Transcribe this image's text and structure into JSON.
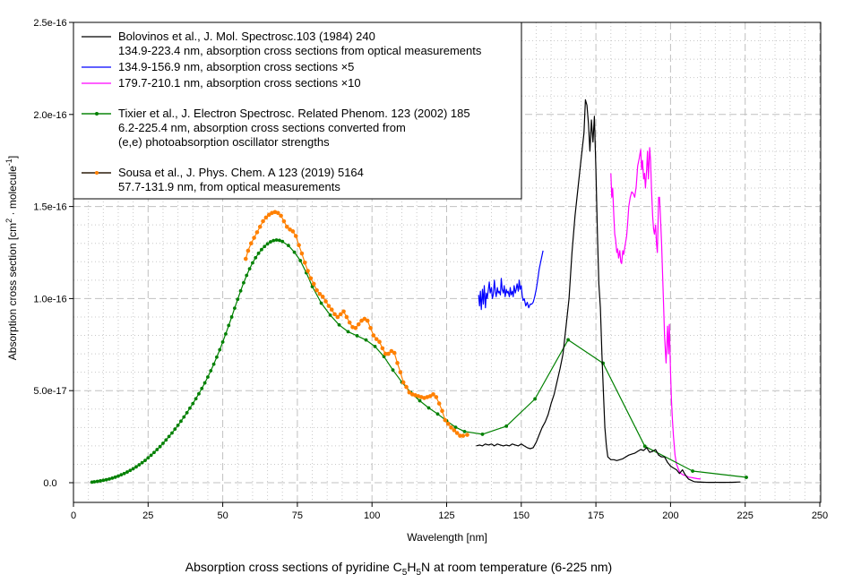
{
  "chart_data": {
    "type": "line",
    "caption": {
      "pre": "Absorption cross sections of pyridine C",
      "sub1": "5",
      "mid1": "H",
      "sub2": "5",
      "post": "N at room temperature (6-225 nm)"
    },
    "xlabel": "Wavelength [nm]",
    "ylabel": {
      "pre": "Absorption cross section [cm",
      "sup1": "2",
      "mid": " · molecule",
      "sup2": "-1",
      "post": "]"
    },
    "xlim": [
      0,
      250
    ],
    "ylim": [
      0,
      2.5e-16
    ],
    "x_ticks": [
      0,
      25,
      50,
      75,
      100,
      125,
      150,
      175,
      200,
      225,
      250
    ],
    "x_tick_labels": [
      "0",
      "25",
      "50",
      "75",
      "100",
      "125",
      "150",
      "175",
      "200",
      "225",
      "250"
    ],
    "y_ticks": [
      0,
      5e-17,
      1e-16,
      1.5e-16,
      2e-16,
      2.5e-16
    ],
    "y_tick_labels": [
      "0.0",
      "5.0e-17",
      "1.0e-16",
      "1.5e-16",
      "2.0e-16",
      "2.5e-16"
    ],
    "grid": true,
    "legend_position": "top-left",
    "legend": [
      {
        "series": "bolovinos",
        "lines": [
          "Bolovinos et al., J. Mol. Spectrosc.103 (1984) 240",
          "134.9-223.4 nm, absorption cross sections from optical measurements"
        ]
      },
      {
        "series": "bolovinos_x5",
        "lines": [
          "134.9-156.9 nm, absorption cross sections ×5"
        ]
      },
      {
        "series": "bolovinos_x10",
        "lines": [
          "179.7-210.1 nm, absorption cross sections ×10"
        ]
      },
      {
        "series": "tixier",
        "lines": [
          "Tixier et al., J. Electron Spectrosc. Related Phenom. 123 (2002) 185",
          "6.2-225.4 nm, absorption cross sections converted from",
          "(e,e) photoabsorption oscillator strengths"
        ]
      },
      {
        "series": "sousa",
        "lines": [
          "Sousa et al., J. Phys. Chem. A 123 (2019) 5164",
          "57.7-131.9 nm, from optical measurements"
        ]
      }
    ],
    "series": [
      {
        "id": "tixier",
        "name": "Tixier et al. (2002)",
        "color": "#008000",
        "markers": true,
        "x": [
          6.2,
          7,
          8,
          9,
          10,
          11,
          12,
          13,
          14,
          15,
          16,
          17,
          18,
          19,
          20,
          21,
          22,
          23,
          24,
          25,
          26,
          27,
          28,
          29,
          30,
          31,
          32,
          33,
          34,
          35,
          36,
          37,
          38,
          39,
          40,
          41,
          42,
          43,
          44,
          45,
          46,
          47,
          48,
          49,
          50,
          51,
          52,
          53,
          54,
          55,
          56,
          57,
          58,
          59,
          60,
          61,
          62,
          63,
          64,
          65,
          66,
          67,
          68,
          69,
          70,
          72,
          74,
          76,
          78,
          80,
          83,
          86,
          89,
          92,
          95,
          98,
          101,
          104,
          107,
          110,
          113,
          116,
          119,
          122,
          125,
          128,
          131,
          137,
          145,
          154.6,
          165.7,
          177.4,
          191.4,
          207.4,
          225.4
        ],
        "y": [
          3e-19,
          5e-19,
          7e-19,
          1e-18,
          1.3e-18,
          1.6e-18,
          2e-18,
          2.5e-18,
          3e-18,
          3.6e-18,
          4.3e-18,
          5e-18,
          5.8e-18,
          6.7e-18,
          7.6e-18,
          8.6e-18,
          9.7e-18,
          1.09e-17,
          1.21e-17,
          1.35e-17,
          1.49e-17,
          1.64e-17,
          1.8e-17,
          1.96e-17,
          2.14e-17,
          2.32e-17,
          2.51e-17,
          2.7e-17,
          2.91e-17,
          3.12e-17,
          3.34e-17,
          3.57e-17,
          3.8e-17,
          4.05e-17,
          4.3e-17,
          4.56e-17,
          4.83e-17,
          5.12e-17,
          5.42e-17,
          5.74e-17,
          6.08e-17,
          6.44e-17,
          6.82e-17,
          7.22e-17,
          7.64e-17,
          8.08e-17,
          8.54e-17,
          9e-17,
          9.48e-17,
          9.96e-17,
          1.042e-16,
          1.086e-16,
          1.126e-16,
          1.162e-16,
          1.194e-16,
          1.222e-16,
          1.246e-16,
          1.266e-16,
          1.283e-16,
          1.297e-16,
          1.308e-16,
          1.315e-16,
          1.318e-16,
          1.316e-16,
          1.31e-16,
          1.288e-16,
          1.252e-16,
          1.206e-16,
          1.14e-16,
          1.065e-16,
          9.75e-17,
          9.1e-17,
          8.57e-17,
          8.2e-17,
          7.98e-17,
          7.75e-17,
          7.4e-17,
          6.85e-17,
          6.12e-17,
          5.46e-17,
          4.9e-17,
          4.45e-17,
          4.06e-17,
          3.73e-17,
          3.36e-17,
          3.01e-17,
          2.78e-17,
          2.63e-17,
          3.07e-17,
          4.55e-17,
          7.76e-17,
          6.49e-17,
          1.98e-17,
          6.3e-18,
          2.9e-18
        ]
      },
      {
        "id": "sousa",
        "name": "Sousa et al. (2019)",
        "color": "#ff8000",
        "markers": true,
        "x": [
          57.7,
          58.5,
          59.5,
          60.5,
          61.5,
          62.5,
          63.5,
          64.5,
          65.5,
          66.5,
          67.5,
          68.5,
          69.5,
          70.5,
          71.5,
          72.5,
          73.5,
          74.5,
          75.5,
          76.5,
          77.5,
          78.5,
          79.5,
          80.5,
          81.5,
          82.5,
          83.5,
          84.5,
          85.5,
          86.5,
          87.5,
          88.5,
          89.5,
          90.5,
          91.5,
          92.5,
          93.5,
          94.5,
          95.5,
          96.5,
          97.5,
          98.5,
          99.5,
          100.5,
          101.5,
          102.5,
          103.5,
          104.5,
          105.5,
          106.5,
          107.5,
          108.5,
          109.5,
          110.5,
          111.5,
          112.5,
          113.5,
          114.5,
          115.5,
          116.5,
          117.5,
          118.5,
          119.5,
          120.5,
          121.5,
          122.5,
          123.5,
          124.5,
          125.5,
          126.5,
          127.5,
          128.5,
          129.5,
          130.5,
          131.9
        ],
        "y": [
          1.216e-16,
          1.26e-16,
          1.3e-16,
          1.33e-16,
          1.36e-16,
          1.39e-16,
          1.42e-16,
          1.44e-16,
          1.455e-16,
          1.465e-16,
          1.47e-16,
          1.465e-16,
          1.45e-16,
          1.42e-16,
          1.39e-16,
          1.375e-16,
          1.365e-16,
          1.34e-16,
          1.29e-16,
          1.245e-16,
          1.195e-16,
          1.15e-16,
          1.11e-16,
          1.08e-16,
          1.045e-16,
          1.025e-16,
          1.01e-16,
          9.85e-17,
          9.6e-17,
          9.4e-17,
          9.15e-17,
          9e-17,
          9.15e-17,
          9.3e-17,
          9e-17,
          8.7e-17,
          8.45e-17,
          8.4e-17,
          8.6e-17,
          8.8e-17,
          8.9e-17,
          8.8e-17,
          8.4e-17,
          8e-17,
          7.8e-17,
          7.65e-17,
          7.3e-17,
          7e-17,
          7e-17,
          7.15e-17,
          7.05e-17,
          6.5e-17,
          6e-17,
          5.45e-17,
          5.2e-17,
          4.9e-17,
          4.8e-17,
          4.75e-17,
          4.7e-17,
          4.65e-17,
          4.6e-17,
          4.65e-17,
          4.7e-17,
          4.8e-17,
          4.65e-17,
          4.3e-17,
          3.9e-17,
          3.4e-17,
          3.2e-17,
          3e-17,
          2.85e-17,
          2.7e-17,
          2.55e-17,
          2.55e-17,
          2.6e-17
        ]
      },
      {
        "id": "bolovinos",
        "name": "Bolovinos et al. (1984)",
        "color": "#000000",
        "markers": false,
        "x": [
          134.9,
          136,
          137,
          138,
          139,
          140,
          141,
          142,
          143,
          144,
          145,
          146,
          147,
          148,
          149,
          150,
          151,
          152,
          153,
          154,
          155,
          156,
          157,
          158,
          159,
          160,
          161,
          162,
          163,
          164,
          165,
          166,
          167,
          168,
          169,
          170,
          171,
          171.5,
          172,
          172.5,
          173,
          173.5,
          174,
          174.5,
          175,
          175.5,
          176,
          176.5,
          177,
          177.5,
          178,
          178.5,
          179,
          180,
          181,
          182,
          183,
          184,
          185,
          186,
          187,
          188,
          189,
          190,
          191,
          192,
          193,
          194,
          195,
          196,
          197,
          198,
          199,
          200,
          201,
          202,
          203,
          204,
          205,
          206,
          208,
          212,
          216,
          220,
          223.4
        ],
        "y": [
          2e-17,
          2.05e-17,
          2e-17,
          2.1e-17,
          2.05e-17,
          2.1e-17,
          2e-17,
          2.1e-17,
          2.05e-17,
          2e-17,
          2.05e-17,
          2e-17,
          2.1e-17,
          2.05e-17,
          2e-17,
          2.1e-17,
          2e-17,
          1.9e-17,
          1.85e-17,
          1.9e-17,
          2.2e-17,
          2.6e-17,
          3e-17,
          3.3e-17,
          3.7e-17,
          4.3e-17,
          4.8e-17,
          5.5e-17,
          6.2e-17,
          7e-17,
          8.5e-17,
          1e-16,
          1.25e-16,
          1.45e-16,
          1.6e-16,
          1.75e-16,
          1.9e-16,
          2.08e-16,
          2.05e-16,
          1.95e-16,
          1.8e-16,
          1.97e-16,
          1.85e-16,
          1.99e-16,
          1.7e-16,
          1.35e-16,
          1.08e-16,
          9.5e-17,
          7e-17,
          5e-17,
          3e-17,
          2e-17,
          1.4e-17,
          1.25e-17,
          1.25e-17,
          1.2e-17,
          1.25e-17,
          1.3e-17,
          1.4e-17,
          1.5e-17,
          1.55e-17,
          1.6e-17,
          1.7e-17,
          1.8e-17,
          1.75e-17,
          1.9e-17,
          1.65e-17,
          1.7e-17,
          1.8e-17,
          1.5e-17,
          1.4e-17,
          1.4e-17,
          1.1e-17,
          9e-18,
          8e-18,
          7e-18,
          5e-18,
          7e-18,
          4e-18,
          2e-18,
          5e-19,
          2e-19,
          2e-19,
          2e-19,
          4e-19
        ]
      },
      {
        "id": "bolovinos_x5",
        "name": "Bolovinos ×5",
        "color": "#0000ff",
        "markers": false,
        "x": [
          135.7,
          136,
          136.3,
          136.6,
          137,
          137.3,
          137.6,
          138,
          138.3,
          138.6,
          139,
          139.3,
          139.6,
          140,
          140.3,
          140.6,
          141,
          141.3,
          141.6,
          142,
          142.3,
          142.6,
          143,
          143.3,
          143.6,
          144,
          144.3,
          144.6,
          145,
          145.3,
          145.6,
          146,
          146.3,
          146.6,
          147,
          147.3,
          147.6,
          148,
          148.3,
          148.6,
          149,
          149.3,
          149.6,
          150,
          150.3,
          150.6,
          151,
          151.5,
          152,
          152.5,
          153,
          153.5,
          154,
          154.5,
          155,
          155.5,
          156,
          156.5,
          157.3
        ],
        "y": [
          1.02e-16,
          9.6e-17,
          1.04e-16,
          9.4e-17,
          1.05e-16,
          9.7e-17,
          1.07e-16,
          9.5e-17,
          1.03e-16,
          1e-16,
          1.05e-16,
          1.09e-16,
          1.03e-16,
          1.06e-16,
          1e-16,
          1.02e-16,
          1.1e-16,
          1.04e-16,
          1.01e-16,
          1.06e-16,
          1.03e-16,
          1.04e-16,
          1.02e-16,
          1.11e-16,
          1.05e-16,
          1.03e-16,
          1.07e-16,
          1.01e-16,
          1.05e-16,
          1.03e-16,
          1.04e-16,
          1.01e-16,
          1.06e-16,
          1.02e-16,
          1.04e-16,
          1.01e-16,
          1.07e-16,
          1.03e-16,
          1.05e-16,
          1.08e-16,
          1.04e-16,
          1.1e-16,
          1.05e-16,
          1.07e-16,
          1.02e-16,
          9.9e-17,
          1e-16,
          9.6e-17,
          9.8e-17,
          9.5e-17,
          9.7e-17,
          9.7e-17,
          9.8e-17,
          1.01e-16,
          1.05e-16,
          1.1e-16,
          1.16e-16,
          1.2e-16,
          1.26e-16
        ]
      },
      {
        "id": "bolovinos_x10",
        "name": "Bolovinos ×10",
        "color": "#ff00ff",
        "markers": false,
        "x": [
          180,
          180.3,
          180.6,
          181,
          181.3,
          181.6,
          182,
          182.3,
          182.6,
          183,
          183.3,
          183.6,
          184,
          184.3,
          184.6,
          185,
          185.3,
          185.6,
          186,
          186.5,
          187,
          187.5,
          188,
          188.5,
          189,
          189.5,
          190,
          190.3,
          190.6,
          191,
          191.3,
          191.6,
          192,
          192.3,
          192.6,
          193,
          193.3,
          193.6,
          194,
          194.3,
          194.6,
          195,
          195.3,
          195.6,
          196,
          196.3,
          196.6,
          197,
          197.3,
          197.6,
          198,
          198.5,
          199,
          199.3,
          199.6,
          200,
          200.3,
          200.6,
          201,
          201.5,
          202,
          202.5,
          203,
          203.5,
          204,
          204.5,
          205,
          205.5,
          206,
          207,
          208,
          209,
          210.1
        ],
        "y": [
          1.68e-16,
          1.55e-16,
          1.6e-16,
          1.45e-16,
          1.35e-16,
          1.32e-16,
          1.25e-16,
          1.27e-16,
          1.22e-16,
          1.26e-16,
          1.2e-16,
          1.19e-16,
          1.26e-16,
          1.24e-16,
          1.27e-16,
          1.31e-16,
          1.34e-16,
          1.4e-16,
          1.5e-16,
          1.55e-16,
          1.58e-16,
          1.57e-16,
          1.55e-16,
          1.61e-16,
          1.72e-16,
          1.76e-16,
          1.81e-16,
          1.7e-16,
          1.75e-16,
          1.65e-16,
          1.68e-16,
          1.6e-16,
          1.7e-16,
          1.8e-16,
          1.65e-16,
          1.82e-16,
          1.75e-16,
          1.6e-16,
          1.45e-16,
          1.38e-16,
          1.35e-16,
          1.4e-16,
          1.3e-16,
          1.25e-16,
          1.55e-16,
          1.55e-16,
          1.45e-16,
          1.3e-16,
          1.15e-16,
          1e-16,
          8e-17,
          6.5e-17,
          8.5e-17,
          7e-17,
          8.6e-17,
          6e-17,
          4.5e-17,
          3.5e-17,
          2.5e-17,
          1.5e-17,
          1e-17,
          8e-18,
          6e-18,
          5e-18,
          4.5e-18,
          4e-18,
          4e-18,
          3.5e-18,
          3e-18,
          2.8e-18,
          2.5e-18,
          2.2e-18,
          2e-18
        ]
      }
    ]
  }
}
